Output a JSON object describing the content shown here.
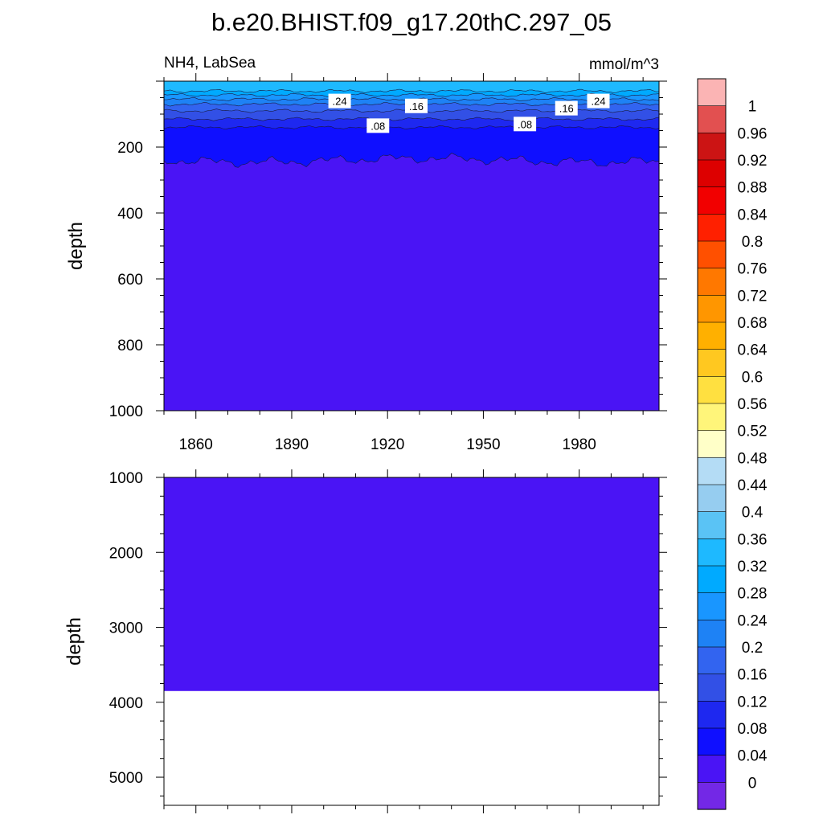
{
  "figure": {
    "title": "b.e20.BHIST.f09_g17.20thC.297_05",
    "variable_region": "NH4, LabSea",
    "units": "mmol/m^3"
  },
  "chart_data": [
    {
      "type": "heatmap",
      "panel": "upper",
      "title": "",
      "xlabel": "",
      "ylabel": "depth",
      "x_range": [
        1850,
        2005
      ],
      "xticks": [
        1860,
        1890,
        1920,
        1950,
        1980
      ],
      "ylim": [
        0,
        1000
      ],
      "y_inverted": true,
      "yticks": [
        200,
        400,
        600,
        800,
        1000
      ],
      "fill_color_deep": "#4a14f5",
      "contour_levels": [
        {
          "value": 0.04,
          "approx_depth": 240
        },
        {
          "value": 0.08,
          "approx_depth": 140
        },
        {
          "value": 0.12,
          "approx_depth": 115
        },
        {
          "value": 0.16,
          "approx_depth": 90
        },
        {
          "value": 0.2,
          "approx_depth": 70
        },
        {
          "value": 0.24,
          "approx_depth": 55
        },
        {
          "value": 0.28,
          "approx_depth": 42
        },
        {
          "value": 0.32,
          "approx_depth": 30
        }
      ],
      "contour_labels": [
        {
          "text": ".24",
          "x": 1905,
          "depth": 60
        },
        {
          "text": ".16",
          "x": 1929,
          "depth": 75
        },
        {
          "text": ".08",
          "x": 1917,
          "depth": 135
        },
        {
          "text": ".08",
          "x": 1963,
          "depth": 130
        },
        {
          "text": ".16",
          "x": 1976,
          "depth": 82
        },
        {
          "text": ".24",
          "x": 1986,
          "depth": 60
        }
      ]
    },
    {
      "type": "heatmap",
      "panel": "lower",
      "title": "",
      "xlabel": "",
      "ylabel": "depth",
      "x_range": [
        1850,
        2005
      ],
      "ylim": [
        1000,
        5375
      ],
      "y_inverted": true,
      "yticks": [
        1000,
        2000,
        3000,
        4000,
        5000
      ],
      "fill_color": "#4a14f5",
      "data_bottom_depth": 3850
    }
  ],
  "colorbar": {
    "labels": [
      "1",
      "0.96",
      "0.92",
      "0.88",
      "0.84",
      "0.8",
      "0.76",
      "0.72",
      "0.68",
      "0.64",
      "0.6",
      "0.56",
      "0.52",
      "0.48",
      "0.44",
      "0.4",
      "0.36",
      "0.32",
      "0.28",
      "0.24",
      "0.2",
      "0.16",
      "0.12",
      "0.08",
      "0.04",
      "0"
    ],
    "colors": [
      "#fbb4b4",
      "#e25050",
      "#cc1414",
      "#dd0000",
      "#f20000",
      "#ff2000",
      "#ff5000",
      "#ff7800",
      "#ff9600",
      "#ffb000",
      "#ffc820",
      "#ffe040",
      "#fff57a",
      "#ffffc8",
      "#b4dcf5",
      "#96cdf0",
      "#5ac3f5",
      "#1eb9ff",
      "#00aaff",
      "#1996ff",
      "#1e82f5",
      "#3264f0",
      "#3250e6",
      "#1e28f0",
      "#0f0fff",
      "#4a14f5",
      "#7328e6"
    ]
  }
}
